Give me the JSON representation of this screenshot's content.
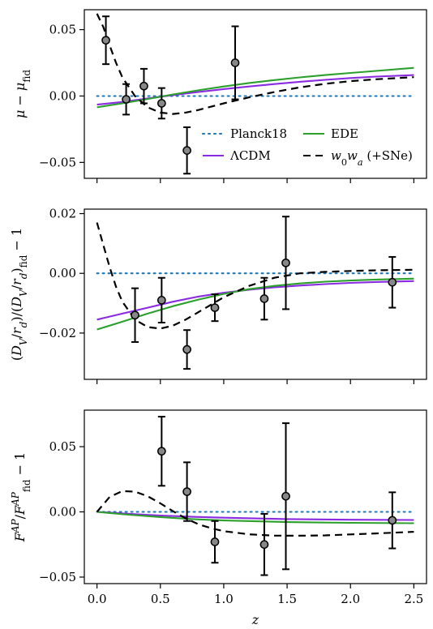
{
  "colors": {
    "planck": "#1f77b4",
    "lcdm": "#8a2be2",
    "ede": "#2ca02c",
    "w0wa": "#000000",
    "points": "#888888"
  },
  "chart_data": [
    {
      "type": "line",
      "panel": "mu",
      "ylabel": "μ − μfid",
      "xlim": [
        -0.1,
        2.6
      ],
      "ylim": [
        -0.062,
        0.065
      ],
      "yticks": [
        0.05,
        0.0,
        -0.05
      ],
      "ytick_labels": [
        "0.05",
        "0.00",
        "−0.05"
      ],
      "xticks": [
        0.0,
        0.5,
        1.0,
        1.5,
        2.0,
        2.5
      ],
      "show_x_tick_labels": false,
      "legend": {
        "position": "lower-right",
        "entries": [
          {
            "key": "planck",
            "label": "Planck18"
          },
          {
            "key": "ede",
            "label": "EDE"
          },
          {
            "key": "lcdm",
            "label": "ΛCDM"
          },
          {
            "key": "w0wa",
            "label": "w0wa (+SNe)"
          }
        ]
      },
      "series": [
        {
          "key": "planck",
          "style": "dotted",
          "x": [
            0,
            2.5
          ],
          "y": [
            0.0,
            0.0
          ]
        },
        {
          "key": "lcdm",
          "style": "solid",
          "x": [
            0,
            0.2,
            0.4,
            0.6,
            0.8,
            1.0,
            1.2,
            1.4,
            1.6,
            1.8,
            2.0,
            2.2,
            2.5
          ],
          "y": [
            -0.0065,
            -0.0045,
            -0.0018,
            0.0007,
            0.003,
            0.0052,
            0.0072,
            0.009,
            0.0107,
            0.0122,
            0.0135,
            0.0146,
            0.0158
          ]
        },
        {
          "key": "ede",
          "style": "solid",
          "x": [
            0,
            0.2,
            0.4,
            0.6,
            0.8,
            1.0,
            1.2,
            1.4,
            1.6,
            1.8,
            2.0,
            2.2,
            2.5
          ],
          "y": [
            -0.0085,
            -0.0055,
            -0.0022,
            0.0012,
            0.0043,
            0.0072,
            0.0098,
            0.012,
            0.014,
            0.0158,
            0.0174,
            0.0189,
            0.0212
          ]
        },
        {
          "key": "w0wa",
          "style": "dashed",
          "x": [
            0,
            0.05,
            0.1,
            0.15,
            0.2,
            0.3,
            0.4,
            0.5,
            0.6,
            0.7,
            0.8,
            1.0,
            1.2,
            1.4,
            1.6,
            1.8,
            2.0,
            2.2,
            2.5
          ],
          "y": [
            0.062,
            0.052,
            0.038,
            0.025,
            0.014,
            0.0,
            -0.0085,
            -0.0125,
            -0.0135,
            -0.0125,
            -0.0105,
            -0.0055,
            -0.001,
            0.003,
            0.0065,
            0.0092,
            0.0112,
            0.0126,
            0.0142
          ]
        }
      ],
      "points": [
        {
          "x": 0.07,
          "y": 0.042,
          "err": 0.018
        },
        {
          "x": 0.23,
          "y": -0.0025,
          "err": 0.0115
        },
        {
          "x": 0.37,
          "y": 0.0075,
          "err": 0.013
        },
        {
          "x": 0.51,
          "y": -0.0055,
          "err": 0.0115
        },
        {
          "x": 0.71,
          "y": -0.041,
          "err": 0.0175
        },
        {
          "x": 1.09,
          "y": 0.025,
          "err": 0.0275
        }
      ]
    },
    {
      "type": "line",
      "panel": "dv",
      "ylabel": "(DV/rd)/(DV/rd)fid − 1",
      "xlim": [
        -0.1,
        2.6
      ],
      "ylim": [
        -0.0355,
        0.0215
      ],
      "yticks": [
        0.02,
        0.0,
        -0.02
      ],
      "ytick_labels": [
        "0.02",
        "0.00",
        "−0.02"
      ],
      "xticks": [
        0.0,
        0.5,
        1.0,
        1.5,
        2.0,
        2.5
      ],
      "show_x_tick_labels": false,
      "series": [
        {
          "key": "planck",
          "style": "dotted",
          "x": [
            0,
            2.5
          ],
          "y": [
            0.0,
            0.0
          ]
        },
        {
          "key": "lcdm",
          "style": "solid",
          "x": [
            0,
            0.2,
            0.4,
            0.6,
            0.8,
            1.0,
            1.2,
            1.4,
            1.6,
            1.8,
            2.0,
            2.2,
            2.5
          ],
          "y": [
            -0.0155,
            -0.0135,
            -0.0115,
            -0.0095,
            -0.0078,
            -0.0065,
            -0.0055,
            -0.0047,
            -0.0041,
            -0.0036,
            -0.0032,
            -0.0029,
            -0.0026
          ]
        },
        {
          "key": "ede",
          "style": "solid",
          "x": [
            0,
            0.2,
            0.4,
            0.6,
            0.8,
            1.0,
            1.2,
            1.4,
            1.6,
            1.8,
            2.0,
            2.2,
            2.5
          ],
          "y": [
            -0.0188,
            -0.0162,
            -0.0135,
            -0.011,
            -0.0088,
            -0.0069,
            -0.0053,
            -0.0042,
            -0.0034,
            -0.0028,
            -0.0024,
            -0.0021,
            -0.0018
          ]
        },
        {
          "key": "w0wa",
          "style": "dashed",
          "x": [
            0,
            0.05,
            0.1,
            0.15,
            0.2,
            0.3,
            0.4,
            0.5,
            0.6,
            0.7,
            0.8,
            1.0,
            1.2,
            1.4,
            1.6,
            1.8,
            2.0,
            2.2,
            2.5
          ],
          "y": [
            0.017,
            0.0095,
            0.002,
            -0.0045,
            -0.0095,
            -0.0155,
            -0.018,
            -0.0185,
            -0.0175,
            -0.0155,
            -0.013,
            -0.008,
            -0.0042,
            -0.0015,
            0.0,
            0.0005,
            0.0008,
            0.001,
            0.0012
          ]
        }
      ],
      "points": [
        {
          "x": 0.3,
          "y": -0.014,
          "err": 0.009
        },
        {
          "x": 0.51,
          "y": -0.009,
          "err": 0.0075
        },
        {
          "x": 0.71,
          "y": -0.0255,
          "err": 0.0065
        },
        {
          "x": 0.93,
          "y": -0.0115,
          "err": 0.0045
        },
        {
          "x": 1.32,
          "y": -0.0085,
          "err": 0.007
        },
        {
          "x": 1.49,
          "y": 0.0035,
          "err": 0.0155
        },
        {
          "x": 2.33,
          "y": -0.003,
          "err": 0.0085
        }
      ]
    },
    {
      "type": "line",
      "panel": "fap",
      "ylabel": "F^AP/F^AP_fid − 1",
      "xlabel": "z",
      "xlim": [
        -0.1,
        2.6
      ],
      "ylim": [
        -0.055,
        0.078
      ],
      "yticks": [
        0.05,
        0.0,
        -0.05
      ],
      "ytick_labels": [
        "0.05",
        "0.00",
        "−0.05"
      ],
      "xticks": [
        0.0,
        0.5,
        1.0,
        1.5,
        2.0,
        2.5
      ],
      "xtick_labels": [
        "0.0",
        "0.5",
        "1.0",
        "1.5",
        "2.0",
        "2.5"
      ],
      "show_x_tick_labels": true,
      "series": [
        {
          "key": "planck",
          "style": "dotted",
          "x": [
            0,
            2.5
          ],
          "y": [
            0.0,
            0.0
          ]
        },
        {
          "key": "lcdm",
          "style": "solid",
          "x": [
            0,
            0.25,
            0.5,
            0.75,
            1.0,
            1.5,
            2.0,
            2.5
          ],
          "y": [
            0.0,
            -0.0015,
            -0.0028,
            -0.0038,
            -0.0045,
            -0.0055,
            -0.006,
            -0.0062
          ]
        },
        {
          "key": "ede",
          "style": "solid",
          "x": [
            0,
            0.25,
            0.5,
            0.75,
            1.0,
            1.5,
            2.0,
            2.5
          ],
          "y": [
            0.0,
            -0.0022,
            -0.004,
            -0.0055,
            -0.0066,
            -0.0078,
            -0.0084,
            -0.0087
          ]
        },
        {
          "key": "w0wa",
          "style": "dashed",
          "x": [
            0,
            0.1,
            0.2,
            0.3,
            0.4,
            0.5,
            0.6,
            0.7,
            0.8,
            0.9,
            1.0,
            1.2,
            1.4,
            1.6,
            1.8,
            2.0,
            2.2,
            2.5
          ],
          "y": [
            0.0,
            0.0115,
            0.016,
            0.0155,
            0.012,
            0.0065,
            0.0005,
            -0.005,
            -0.0095,
            -0.0125,
            -0.0148,
            -0.0172,
            -0.0182,
            -0.0183,
            -0.018,
            -0.0173,
            -0.0165,
            -0.0153
          ]
        }
      ],
      "points": [
        {
          "x": 0.51,
          "y": 0.0465,
          "err": 0.0265
        },
        {
          "x": 0.71,
          "y": 0.0155,
          "err": 0.0225
        },
        {
          "x": 0.93,
          "y": -0.023,
          "err": 0.016
        },
        {
          "x": 1.32,
          "y": -0.025,
          "err": 0.0235
        },
        {
          "x": 1.49,
          "y": 0.012,
          "err": 0.056
        },
        {
          "x": 2.33,
          "y": -0.0065,
          "err": 0.0215
        }
      ]
    }
  ]
}
